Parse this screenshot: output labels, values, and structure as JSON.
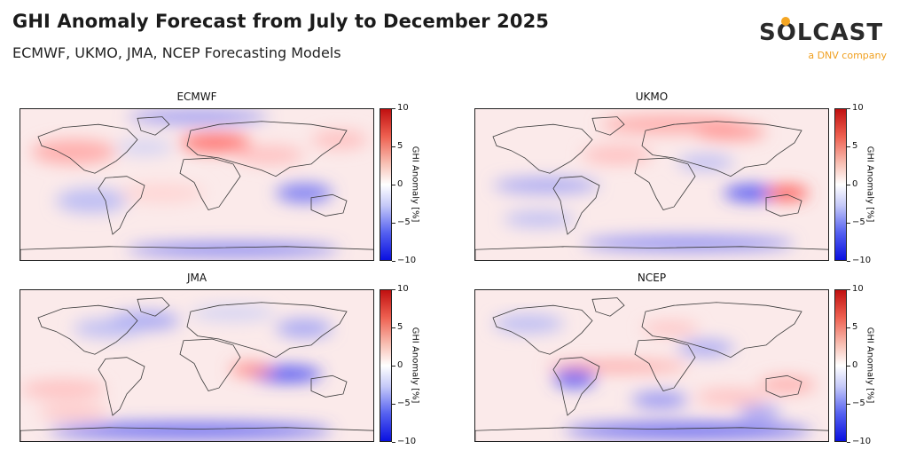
{
  "header": {
    "title": "GHI Anomaly Forecast from July to December 2025",
    "subtitle": "ECMWF, UKMO, JMA, NCEP Forecasting Models"
  },
  "logo": {
    "wordmark": "SOLCAST",
    "tagline": "a DNV company"
  },
  "colors": {
    "positive": "#c01010",
    "neutral": "#ffffff",
    "negative": "#0a10e0",
    "land_outline": "#3a3a3a"
  },
  "chart_data": [
    {
      "type": "heatmap",
      "title": "ECMWF",
      "colorbar": {
        "label": "GHI Anomaly [%]",
        "ticks": [
          10,
          5,
          0,
          -5,
          -10
        ],
        "range": [
          -10,
          10
        ],
        "colormap": "bwr"
      }
    },
    {
      "type": "heatmap",
      "title": "UKMO",
      "colorbar": {
        "label": "GHI Anomaly [%]",
        "ticks": [
          10,
          5,
          0,
          -5,
          -10
        ],
        "range": [
          -10,
          10
        ],
        "colormap": "bwr"
      }
    },
    {
      "type": "heatmap",
      "title": "JMA",
      "colorbar": {
        "label": "GHI Anomaly [%]",
        "ticks": [
          10,
          5,
          0,
          -5,
          -10
        ],
        "range": [
          -10,
          10
        ],
        "colormap": "bwr"
      }
    },
    {
      "type": "heatmap",
      "title": "NCEP",
      "colorbar": {
        "label": "GHI Anomaly [%]",
        "ticks": [
          10,
          5,
          0,
          -5,
          -10
        ],
        "range": [
          -10,
          10
        ],
        "colormap": "bwr"
      }
    }
  ]
}
